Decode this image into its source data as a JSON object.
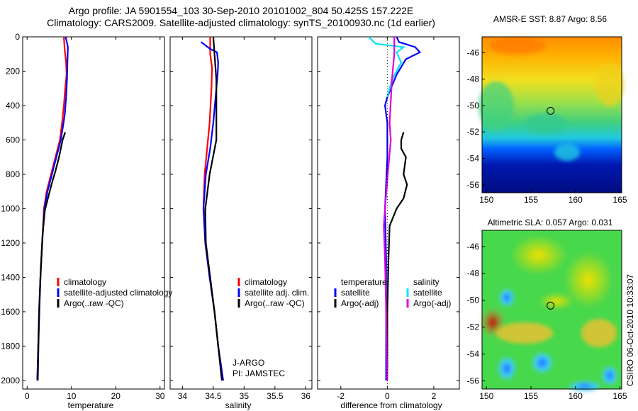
{
  "page": {
    "title_line1": "Argo profile: JA 5901554_103 30-Sep-2010 20101002_804 50.425S 157.222E",
    "title_line2": "Climatology: CARS2009. Satellite-adjusted climatology: synTS_20100930.nc (1d earlier)"
  },
  "colors": {
    "climatology": "#ff0000",
    "satellite": "#0000ff",
    "argo": "#000000",
    "salinity_satellite": "#00e5ff",
    "salinity_argo": "#e000e0"
  },
  "chart_data": [
    {
      "type": "line",
      "id": "temperature",
      "xlabel": "temperature",
      "xlim": [
        -1,
        31
      ],
      "xticks": [
        0,
        10,
        20,
        30
      ],
      "ylim": [
        2050,
        0
      ],
      "yticks": [
        0,
        200,
        400,
        600,
        800,
        1000,
        1200,
        1400,
        1600,
        1800,
        2000
      ],
      "series": [
        {
          "name": "climatology",
          "color": "#ff0000",
          "points": [
            [
              8.3,
              0
            ],
            [
              8.5,
              80
            ],
            [
              8.8,
              150
            ],
            [
              8.9,
              220
            ],
            [
              8.6,
              300
            ],
            [
              8.3,
              400
            ],
            [
              7.9,
              500
            ],
            [
              7.4,
              600
            ],
            [
              6.4,
              700
            ],
            [
              5.4,
              800
            ],
            [
              4.4,
              900
            ],
            [
              3.8,
              1000
            ],
            [
              3.4,
              1200
            ],
            [
              3.0,
              1400
            ],
            [
              2.7,
              1600
            ],
            [
              2.5,
              1800
            ],
            [
              2.3,
              2000
            ]
          ]
        },
        {
          "name": "satellite-adjusted climatology",
          "color": "#0000ff",
          "points": [
            [
              8.7,
              0
            ],
            [
              9.2,
              60
            ],
            [
              9.1,
              150
            ],
            [
              9.0,
              250
            ],
            [
              8.8,
              350
            ],
            [
              8.5,
              450
            ],
            [
              8.1,
              520
            ],
            [
              7.6,
              600
            ],
            [
              6.6,
              700
            ],
            [
              5.6,
              800
            ],
            [
              4.6,
              900
            ],
            [
              3.9,
              1000
            ],
            [
              3.4,
              1200
            ],
            [
              3.0,
              1400
            ],
            [
              2.7,
              1600
            ],
            [
              2.5,
              1800
            ],
            [
              2.3,
              2000
            ]
          ]
        },
        {
          "name": "Argo(..raw -QC)",
          "color": "#000000",
          "points": [
            [
              8.6,
              555
            ],
            [
              8.0,
              600
            ],
            [
              7.6,
              650
            ],
            [
              7.2,
              700
            ],
            [
              6.4,
              780
            ],
            [
              5.5,
              860
            ],
            [
              4.7,
              940
            ],
            [
              4.0,
              1010
            ],
            [
              3.5,
              1150
            ],
            [
              3.1,
              1350
            ],
            [
              2.8,
              1550
            ],
            [
              2.6,
              1750
            ],
            [
              2.4,
              2000
            ]
          ]
        }
      ]
    },
    {
      "type": "line",
      "id": "salinity",
      "xlabel": "salinity",
      "xlim": [
        33.8,
        36.1
      ],
      "xticks": [
        34,
        34.5,
        35,
        35.5,
        36
      ],
      "ylim": [
        2050,
        0
      ],
      "series": [
        {
          "name": "climatology",
          "color": "#ff0000",
          "points": [
            [
              34.45,
              0
            ],
            [
              34.45,
              100
            ],
            [
              34.48,
              180
            ],
            [
              34.47,
              300
            ],
            [
              34.44,
              500
            ],
            [
              34.4,
              650
            ],
            [
              34.36,
              800
            ],
            [
              34.34,
              1000
            ],
            [
              34.37,
              1200
            ],
            [
              34.44,
              1400
            ],
            [
              34.52,
              1600
            ],
            [
              34.58,
              1800
            ],
            [
              34.66,
              2000
            ]
          ]
        },
        {
          "name": "satellite adj. clim.",
          "color": "#0000ff",
          "points": [
            [
              34.3,
              30
            ],
            [
              34.45,
              70
            ],
            [
              34.56,
              90
            ],
            [
              34.58,
              150
            ],
            [
              34.57,
              220
            ],
            [
              34.55,
              300
            ],
            [
              34.5,
              500
            ],
            [
              34.45,
              650
            ],
            [
              34.38,
              800
            ],
            [
              34.34,
              1000
            ],
            [
              34.37,
              1200
            ],
            [
              34.44,
              1400
            ],
            [
              34.52,
              1600
            ],
            [
              34.58,
              1800
            ],
            [
              34.66,
              2000
            ]
          ]
        },
        {
          "name": "Argo(..raw -QC)",
          "color": "#000000",
          "points": [
            [
              34.5,
              0
            ],
            [
              34.52,
              100
            ],
            [
              34.55,
              250
            ],
            [
              34.55,
              400
            ],
            [
              34.55,
              600
            ],
            [
              34.44,
              800
            ],
            [
              34.37,
              1000
            ],
            [
              34.38,
              1200
            ],
            [
              34.45,
              1400
            ],
            [
              34.52,
              1600
            ],
            [
              34.58,
              1800
            ],
            [
              34.64,
              2000
            ]
          ]
        }
      ],
      "annotations": [
        "J-ARGO",
        "PI: JAMSTEC"
      ]
    },
    {
      "type": "line",
      "id": "difference",
      "xlabel": "difference from climatology",
      "xlim": [
        -3,
        3.1
      ],
      "xticks": [
        -2,
        0,
        2
      ],
      "ylim": [
        2050,
        0
      ],
      "legend_headers": [
        "temperature",
        "salinity"
      ],
      "series": [
        {
          "name": "satellite",
          "group": "temperature",
          "color": "#0000ff",
          "points": [
            [
              0.4,
              0
            ],
            [
              0.5,
              30
            ],
            [
              1.2,
              60
            ],
            [
              1.4,
              90
            ],
            [
              0.8,
              130
            ],
            [
              0.4,
              220
            ],
            [
              0.0,
              350
            ],
            [
              -0.1,
              400
            ],
            [
              0.0,
              500
            ],
            [
              0.0,
              700
            ],
            [
              -0.1,
              1000
            ],
            [
              -0.05,
              1300
            ],
            [
              -0.05,
              1600
            ],
            [
              -0.05,
              2000
            ]
          ]
        },
        {
          "name": "Argo(-adj)",
          "group": "temperature",
          "color": "#000000",
          "points": [
            [
              0.7,
              555
            ],
            [
              0.6,
              600
            ],
            [
              0.6,
              650
            ],
            [
              0.8,
              700
            ],
            [
              0.7,
              800
            ],
            [
              0.85,
              860
            ],
            [
              0.7,
              940
            ],
            [
              0.4,
              1000
            ],
            [
              0.1,
              1100
            ],
            [
              0.05,
              1300
            ],
            [
              0.0,
              1600
            ],
            [
              0.0,
              2000
            ]
          ]
        },
        {
          "name": "satellite",
          "group": "salinity",
          "color": "#00e5ff",
          "points": [
            [
              -0.8,
              0
            ],
            [
              -0.5,
              40
            ],
            [
              0.7,
              60
            ],
            [
              0.4,
              90
            ],
            [
              0.6,
              150
            ],
            [
              0.2,
              250
            ],
            [
              0.0,
              350
            ]
          ]
        },
        {
          "name": "Argo(-adj)",
          "group": "salinity",
          "color": "#e000e0",
          "points": [
            [
              0.3,
              0
            ],
            [
              0.3,
              100
            ],
            [
              0.2,
              250
            ],
            [
              0.1,
              500
            ],
            [
              0.15,
              600
            ],
            [
              0.02,
              800
            ],
            [
              -0.1,
              1000
            ],
            [
              -0.15,
              1100
            ],
            [
              -0.1,
              1300
            ],
            [
              -0.05,
              1600
            ],
            [
              0.0,
              2000
            ]
          ]
        }
      ]
    },
    {
      "type": "heatmap",
      "id": "sst-map",
      "title": "AMSR-E SST: 8.87 Argo: 8.56",
      "xlim": [
        149.5,
        165.2
      ],
      "ylim": [
        -56.6,
        -44.8
      ],
      "xticks": [
        150,
        155,
        160,
        165
      ],
      "yticks": [
        -46,
        -48,
        -50,
        -52,
        -54,
        -56
      ],
      "marker": [
        157.2,
        -50.4
      ]
    },
    {
      "type": "heatmap",
      "id": "sla-map",
      "title": "Altimetric SLA: 0.057 Argo: 0.031",
      "xlim": [
        149.5,
        165.2
      ],
      "ylim": [
        -56.6,
        -44.8
      ],
      "xticks": [
        150,
        155,
        160,
        165
      ],
      "yticks": [
        -46,
        -48,
        -50,
        -52,
        -54,
        -56
      ],
      "marker": [
        157.2,
        -50.4
      ],
      "side_label": "CSIRO 06-Oct-2010 10:33:07"
    }
  ],
  "legends": {
    "temperature": [
      "climatology",
      "satellite-adjusted climatology",
      "Argo(..raw -QC)"
    ],
    "salinity": [
      "climatology",
      "satellite adj. clim.",
      "Argo(..raw -QC)"
    ],
    "difference_left": [
      "temperature",
      "satellite",
      "Argo(-adj)"
    ],
    "difference_right": [
      "salinity",
      "satellite",
      "Argo(-adj)"
    ]
  }
}
